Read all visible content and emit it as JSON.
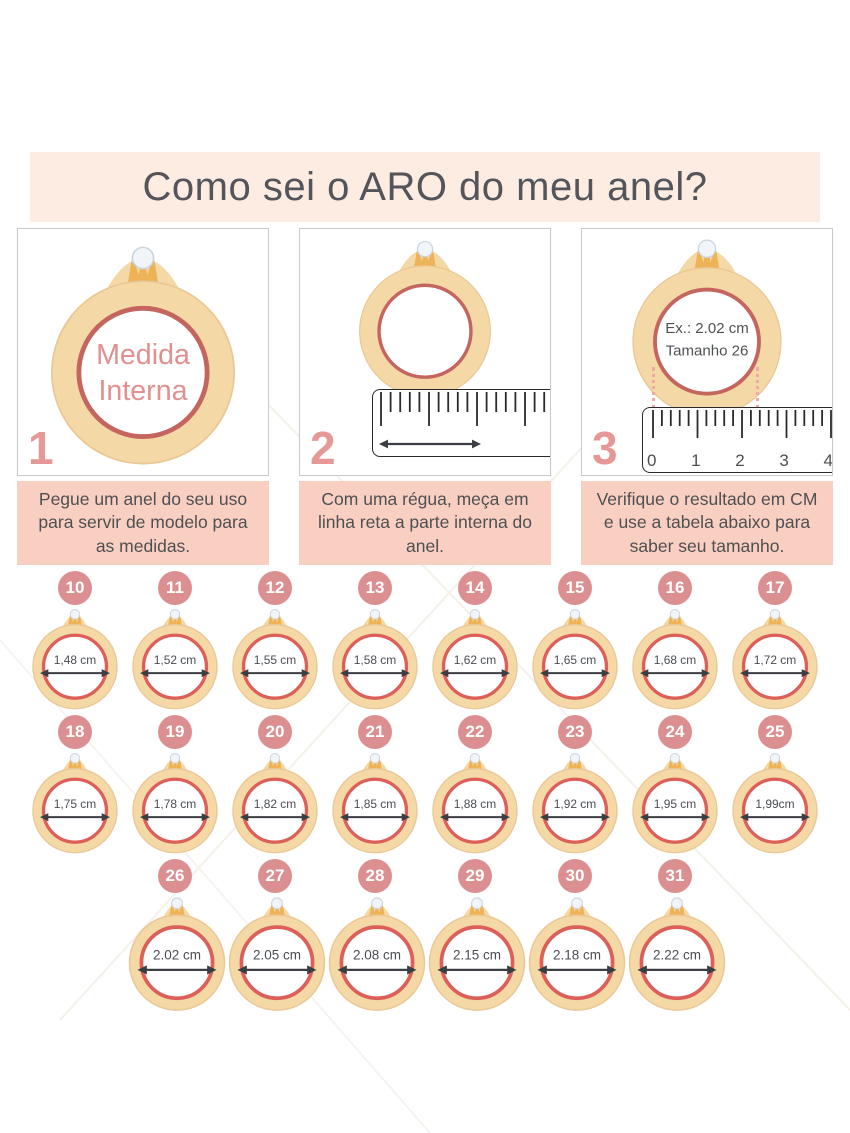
{
  "title_banner": "Como sei o ARO do meu anel?",
  "steps": [
    {
      "number": "1",
      "caption": "Pegue um anel do seu uso para servir de modelo para as medidas.",
      "ring_text_line1": "Medida",
      "ring_text_line2": "Interna"
    },
    {
      "number": "2",
      "caption": "Com uma régua, meça em linha reta a parte interna do anel."
    },
    {
      "number": "3",
      "caption": "Verifique o resultado em CM e use a tabela abaixo para saber seu tamanho.",
      "ring_text_line1": "Ex.: 2.02 cm",
      "ring_text_line2": "Tamanho 26",
      "ruler_labels": [
        "0",
        "1",
        "2",
        "3",
        "4"
      ]
    }
  ],
  "rows": [
    8,
    8,
    6
  ],
  "sizes": [
    {
      "size": "10",
      "diameter": "1,48 cm"
    },
    {
      "size": "11",
      "diameter": "1,52 cm"
    },
    {
      "size": "12",
      "diameter": "1,55 cm"
    },
    {
      "size": "13",
      "diameter": "1,58 cm"
    },
    {
      "size": "14",
      "diameter": "1,62 cm"
    },
    {
      "size": "15",
      "diameter": "1,65 cm"
    },
    {
      "size": "16",
      "diameter": "1,68 cm"
    },
    {
      "size": "17",
      "diameter": "1,72 cm"
    },
    {
      "size": "18",
      "diameter": "1,75 cm"
    },
    {
      "size": "19",
      "diameter": "1,78 cm"
    },
    {
      "size": "20",
      "diameter": "1,82 cm"
    },
    {
      "size": "21",
      "diameter": "1,85 cm"
    },
    {
      "size": "22",
      "diameter": "1,88 cm"
    },
    {
      "size": "23",
      "diameter": "1,92 cm"
    },
    {
      "size": "24",
      "diameter": "1,95 cm"
    },
    {
      "size": "25",
      "diameter": "1,99cm"
    },
    {
      "size": "26",
      "diameter": "2.02 cm"
    },
    {
      "size": "27",
      "diameter": "2.05 cm"
    },
    {
      "size": "28",
      "diameter": "2.08 cm"
    },
    {
      "size": "29",
      "diameter": "2.15 cm"
    },
    {
      "size": "30",
      "diameter": "2.18 cm"
    },
    {
      "size": "31",
      "diameter": "2.22 cm"
    }
  ],
  "colors": {
    "banner_bg": "#fdece2",
    "caption_bg": "#f9cfc2",
    "badge_bg": "#db8f90",
    "accent_pink": "#e59896",
    "ring_gold": "#f4d8a5",
    "ring_gold_edge": "#eac795",
    "ring_red": "#dd5f5a",
    "ring_red_muted": "#c4655f",
    "title_text": "#54555a",
    "body_text": "#4e5052"
  }
}
